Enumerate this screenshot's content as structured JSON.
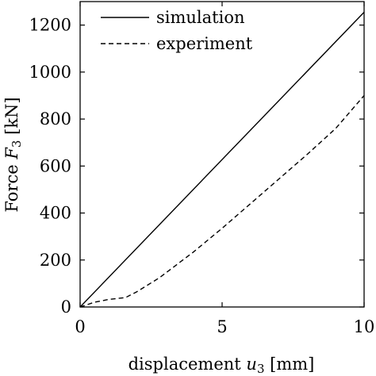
{
  "chart_data": {
    "type": "line",
    "title": "",
    "xlabel_text": "displacement ",
    "xlabel_var": "u",
    "xlabel_sub": "3",
    "xlabel_unit": " [mm]",
    "ylabel_text": "Force ",
    "ylabel_var": "F",
    "ylabel_sub": "3",
    "ylabel_unit": " [kN]",
    "xlim": [
      0,
      10
    ],
    "ylim": [
      0,
      1300
    ],
    "xticks": [
      0,
      5,
      10
    ],
    "yticks": [
      0,
      200,
      400,
      600,
      800,
      1000,
      1200
    ],
    "grid": false,
    "legend_position": "top-left",
    "series": [
      {
        "name": "simulation",
        "style": "solid",
        "color": "#000000",
        "x": [
          0,
          10
        ],
        "y": [
          0,
          1255
        ]
      },
      {
        "name": "experiment",
        "style": "dashed",
        "color": "#000000",
        "x": [
          0,
          0.5,
          1.0,
          1.6,
          2.0,
          2.8,
          4.0,
          5.0,
          6.0,
          7.0,
          8.0,
          9.0,
          10.0
        ],
        "y": [
          0,
          20,
          32,
          40,
          65,
          125,
          235,
          335,
          440,
          545,
          650,
          760,
          900
        ]
      }
    ]
  }
}
